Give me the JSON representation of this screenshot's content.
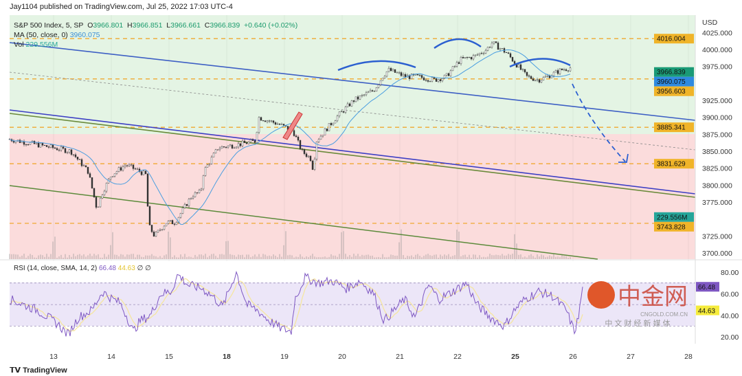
{
  "published": "Jay1104 published on TradingView.com, Jul 25, 2022 17:03 UTC-4",
  "legend": {
    "symbol": "S&P 500 Index, 5, SP",
    "o_label": "O",
    "o": "3966.801",
    "h_label": "H",
    "h": "3966.851",
    "l_label": "L",
    "l": "3966.661",
    "c_label": "C",
    "c": "3966.839",
    "change": "+0.640 (+0.02%)",
    "ma_label": "MA (50, close, 0)",
    "ma": "3960.075",
    "vol_label": "Vol",
    "vol": "229.556M",
    "rsi_label": "RSI (14, close, SMA, 14, 2)",
    "rsi": "66.48",
    "rsi_sma": "44.63",
    "rsi_extra": "∅ ∅"
  },
  "colors": {
    "up_zone": "#e4f4e4",
    "down_zone": "#fbdcdc",
    "candle": "#333333",
    "ma": "#4a9ee0",
    "trend_blue": "#3d5fc4",
    "trend_green": "#5b8a3a",
    "level": "#f0a830",
    "rsi": "#7e57c2",
    "rsi_sma": "#f5e6a0",
    "rsi_band": "#ece6f8"
  },
  "footer": {
    "brand": "TradingView"
  },
  "watermark": {
    "name": "中金网",
    "domain": "CNGOLD.COM.CN",
    "tagline": "中 文 财 经 新 媒 体"
  },
  "chart_data": {
    "type": "candlestick",
    "currency": "USD",
    "ylim": [
      3695,
      4030
    ],
    "y_ticks": [
      "4025.000",
      "4000.000",
      "3975.000",
      "3925.000",
      "3900.000",
      "3875.000",
      "3850.000",
      "3825.000",
      "3800.000",
      "3775.000",
      "3725.000",
      "3700.000"
    ],
    "price_tags": [
      {
        "label": "4016.004",
        "value": 4016.004,
        "color": "#f0b429"
      },
      {
        "label": "3966.839",
        "value": 3966.839,
        "color": "#1a9a76"
      },
      {
        "label": "3960.075",
        "value": 3960.075,
        "color": "#2f8ae0"
      },
      {
        "label": "3956.603",
        "value": 3956.603,
        "color": "#f0b429"
      },
      {
        "label": "3885.341",
        "value": 3885.341,
        "color": "#f0b429"
      },
      {
        "label": "3831.629",
        "value": 3831.629,
        "color": "#f0b429"
      },
      {
        "label": "229.556M",
        "value": 3753,
        "color": "#26a69a"
      },
      {
        "label": "3743.828",
        "value": 3743.828,
        "color": "#f0b429"
      }
    ],
    "levels": [
      4016.004,
      3956.603,
      3885.341,
      3831.629,
      3743.828
    ],
    "x_labels": [
      "13",
      "14",
      "15",
      "18",
      "19",
      "20",
      "21",
      "22",
      "25",
      "26",
      "27",
      "28"
    ],
    "bold_x_labels": [
      "18",
      "25"
    ],
    "price_path": [
      [
        13.0,
        3855
      ],
      [
        13.3,
        3850
      ],
      [
        13.6,
        3820
      ],
      [
        13.75,
        3765
      ],
      [
        13.85,
        3790
      ],
      [
        14.0,
        3815
      ],
      [
        14.25,
        3830
      ],
      [
        14.5,
        3820
      ],
      [
        14.6,
        3815
      ],
      [
        14.65,
        3740
      ],
      [
        14.75,
        3725
      ],
      [
        14.95,
        3745
      ],
      [
        15.1,
        3745
      ],
      [
        15.4,
        3785
      ],
      [
        15.55,
        3790
      ],
      [
        15.6,
        3820
      ],
      [
        15.85,
        3855
      ],
      [
        16.2,
        3860
      ],
      [
        16.5,
        3865
      ],
      [
        16.55,
        3900
      ],
      [
        16.9,
        3890
      ],
      [
        17.15,
        3880
      ],
      [
        17.3,
        3850
      ],
      [
        17.45,
        3840
      ],
      [
        17.5,
        3822
      ],
      [
        17.55,
        3865
      ],
      [
        17.75,
        3885
      ],
      [
        17.9,
        3900
      ],
      [
        18.2,
        3925
      ],
      [
        18.55,
        3940
      ],
      [
        18.7,
        3960
      ],
      [
        18.8,
        3970
      ],
      [
        19.1,
        3960
      ],
      [
        19.3,
        3960
      ],
      [
        19.6,
        3955
      ],
      [
        19.8,
        3960
      ],
      [
        20.05,
        3985
      ],
      [
        20.3,
        3990
      ],
      [
        20.5,
        4000
      ],
      [
        20.6,
        4010
      ],
      [
        20.85,
        3995
      ],
      [
        21.0,
        3980
      ],
      [
        21.2,
        3960
      ],
      [
        21.4,
        3955
      ],
      [
        21.55,
        3960
      ],
      [
        21.8,
        3970
      ],
      [
        22.05,
        3975
      ],
      [
        22.2,
        3970
      ],
      [
        22.4,
        3960
      ],
      [
        22.5,
        3966.8
      ]
    ],
    "rsi_ylim": [
      15,
      85
    ],
    "rsi_ticks": [
      "80.00",
      "60.00",
      "40.00",
      "20.00"
    ],
    "rsi_bands": [
      70,
      50,
      30
    ],
    "rsi_path": [
      [
        0,
        55
      ],
      [
        40,
        45
      ],
      [
        70,
        32
      ],
      [
        85,
        22
      ],
      [
        100,
        38
      ],
      [
        120,
        45
      ],
      [
        135,
        62
      ],
      [
        150,
        55
      ],
      [
        160,
        52
      ],
      [
        170,
        40
      ],
      [
        180,
        25
      ],
      [
        190,
        35
      ],
      [
        205,
        40
      ],
      [
        220,
        60
      ],
      [
        235,
        62
      ],
      [
        245,
        78
      ],
      [
        260,
        68
      ],
      [
        280,
        65
      ],
      [
        295,
        58
      ],
      [
        310,
        48
      ],
      [
        330,
        80
      ],
      [
        345,
        50
      ],
      [
        360,
        45
      ],
      [
        378,
        35
      ],
      [
        395,
        28
      ],
      [
        410,
        25
      ],
      [
        415,
        55
      ],
      [
        430,
        75
      ],
      [
        450,
        70
      ],
      [
        470,
        72
      ],
      [
        490,
        65
      ],
      [
        510,
        72
      ],
      [
        530,
        60
      ],
      [
        545,
        35
      ],
      [
        560,
        45
      ],
      [
        575,
        55
      ],
      [
        590,
        38
      ],
      [
        610,
        68
      ],
      [
        625,
        55
      ],
      [
        645,
        62
      ],
      [
        665,
        70
      ],
      [
        680,
        50
      ],
      [
        700,
        38
      ],
      [
        720,
        30
      ],
      [
        735,
        45
      ],
      [
        750,
        55
      ],
      [
        770,
        62
      ],
      [
        790,
        58
      ],
      [
        810,
        45
      ],
      [
        822,
        25
      ],
      [
        828,
        38
      ],
      [
        834,
        66.48
      ]
    ]
  }
}
